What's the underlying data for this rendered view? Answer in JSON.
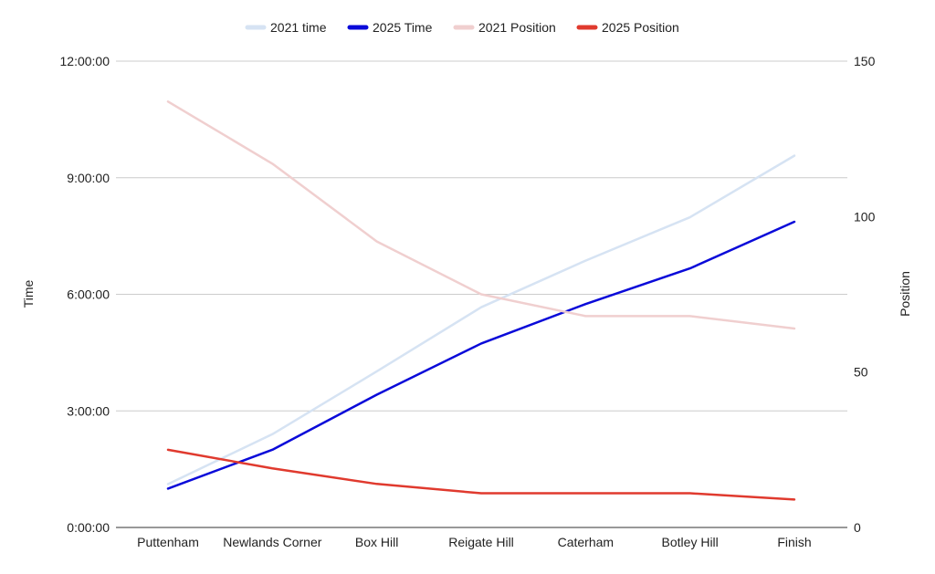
{
  "chart_data": {
    "type": "line",
    "categories": [
      "Puttenham",
      "Newlands Corner",
      "Box Hill",
      "Reigate Hill",
      "Caterham",
      "Botley Hill",
      "Finish"
    ],
    "series": [
      {
        "name": "2021 time",
        "axis": "left",
        "color": "#d6e3f3",
        "values": [
          "1:07:00",
          "2:24:00",
          "4:01:00",
          "5:40:00",
          "6:52:00",
          "7:59:00",
          "9:34:00"
        ]
      },
      {
        "name": "2025 Time",
        "axis": "left",
        "color": "#0a0ad9",
        "values": [
          "1:00:00",
          "2:00:00",
          "3:25:00",
          "4:44:00",
          "5:45:00",
          "6:40:00",
          "7:52:00"
        ]
      },
      {
        "name": "2021 Position",
        "axis": "right",
        "color": "#f0cfcf",
        "values": [
          137,
          117,
          92,
          75,
          68,
          68,
          64
        ]
      },
      {
        "name": "2025 Position",
        "axis": "right",
        "color": "#e03a2e",
        "values": [
          25,
          19,
          14,
          11,
          11,
          11,
          9
        ]
      }
    ],
    "y_left": {
      "label": "Time",
      "ticks": [
        "0:00:00",
        "3:00:00",
        "6:00:00",
        "9:00:00",
        "12:00:00"
      ],
      "range": [
        "0:00:00",
        "12:00:00"
      ]
    },
    "y_right": {
      "label": "Position",
      "ticks": [
        "0",
        "50",
        "100",
        "150"
      ],
      "range": [
        0,
        150
      ]
    },
    "grid": true,
    "legend_position": "top"
  }
}
